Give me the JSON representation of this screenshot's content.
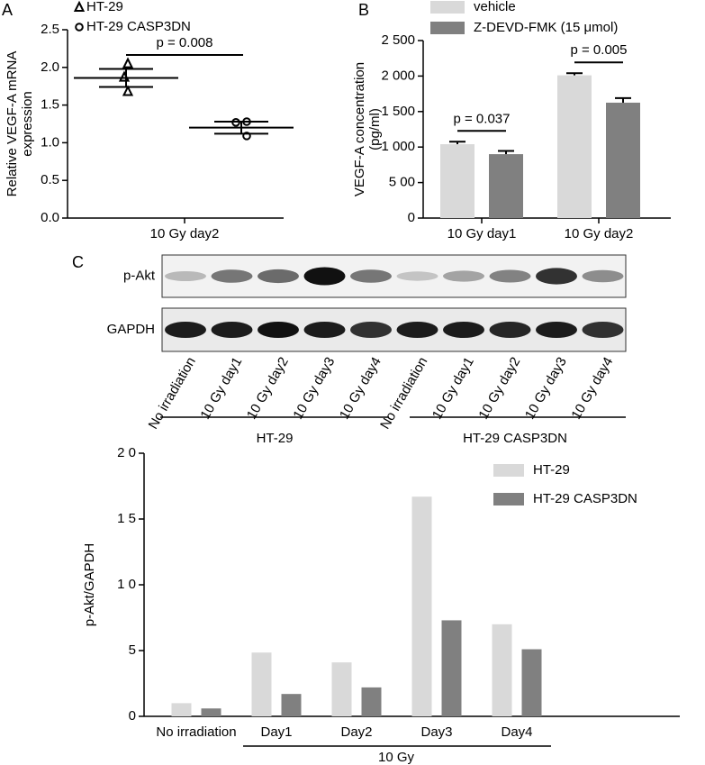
{
  "chart_data": [
    {
      "type": "scatter",
      "panel": "A",
      "ylabel": [
        "Relative VEGF-A mRNA",
        "expression"
      ],
      "categories": [
        "10 Gy day2"
      ],
      "series": [
        {
          "name": "HT-29",
          "marker": "triangle",
          "color": "#000000",
          "values": [
            2.05,
            1.87,
            1.68
          ],
          "mean": 1.86,
          "error": 0.12
        },
        {
          "name": "HT-29 CASP3DN",
          "marker": "circle",
          "color": "#000000",
          "values": [
            1.28,
            1.27,
            1.09
          ],
          "mean": 1.2,
          "error": 0.08
        }
      ],
      "ylim": [
        0,
        2.5
      ],
      "yticks": [
        {
          "value": 0,
          "label": "0.0"
        },
        {
          "value": 0.5,
          "label": "0.5"
        },
        {
          "value": 1,
          "label": "1.0"
        },
        {
          "value": 1.5,
          "label": "1.5"
        },
        {
          "value": 2,
          "label": "2.0"
        },
        {
          "value": 2.5,
          "label": "2.5"
        }
      ],
      "annotations": [
        "p = 0.008"
      ]
    },
    {
      "type": "bar",
      "panel": "B",
      "ylabel": [
        "VEGF-A concentration",
        "(pg/ml)"
      ],
      "categories": [
        "10 Gy day1",
        "10 Gy day2"
      ],
      "series": [
        {
          "name": "vehicle",
          "color": "#d9d9d9",
          "values": [
            1040,
            2010
          ],
          "errors": [
            35,
            30
          ]
        },
        {
          "name": "Z-DEVD-FMK (15 μmol)",
          "color": "#808080",
          "values": [
            900,
            1625
          ],
          "errors": [
            45,
            65
          ]
        }
      ],
      "ylim": [
        0,
        2500
      ],
      "yticks": [
        0,
        {
          "value": 500,
          "label": "5 00"
        },
        {
          "value": 1000,
          "label": "1 000"
        },
        {
          "value": 1500,
          "label": "1 500"
        },
        {
          "value": 2000,
          "label": "2 000"
        },
        {
          "value": 2500,
          "label": "2 500"
        }
      ],
      "annotations": [
        "p = 0.037",
        "p = 0.005"
      ]
    },
    {
      "type": "bar",
      "ylabel": [
        "p-Akt/GAPDH"
      ],
      "categories": [
        "No irradiation",
        "Day1",
        "Day2",
        "Day3",
        "Day4"
      ],
      "group_label": "10 Gy",
      "series": [
        {
          "name": "HT-29",
          "color": "#d9d9d9",
          "values": [
            1.0,
            4.85,
            4.1,
            16.7,
            7.0
          ]
        },
        {
          "name": "HT-29 CASP3DN",
          "color": "#808080",
          "values": [
            0.6,
            1.7,
            2.2,
            7.3,
            5.1
          ]
        }
      ],
      "ylim": [
        0,
        20
      ],
      "yticks": [
        0,
        5,
        {
          "value": 10,
          "label": "1 0"
        },
        {
          "value": 15,
          "label": "1 5"
        },
        {
          "value": 20,
          "label": "2 0"
        }
      ]
    }
  ],
  "blot": {
    "panel": "C",
    "rows": [
      "p-Akt",
      "GAPDH"
    ],
    "lanes": [
      "No irradiation",
      "10 Gy day1",
      "10 Gy day2",
      "10 Gy day3",
      "10 Gy day4",
      "No irradiation",
      "10 Gy day1",
      "10 Gy day2",
      "10 Gy day3",
      "10 Gy day4"
    ],
    "groups": [
      "HT-29",
      "HT-29 CASP3DN"
    ]
  }
}
